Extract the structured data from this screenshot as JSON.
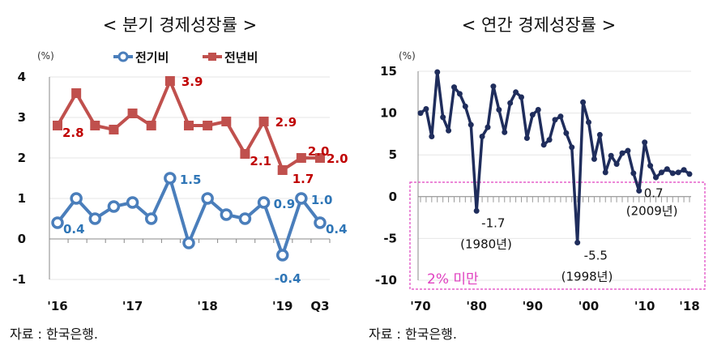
{
  "chart_data": [
    {
      "type": "line",
      "title": "< 분기 경제성장률 >",
      "unit_label": "(%)",
      "x": [
        "2016Q1",
        "2016Q2",
        "2016Q3",
        "2016Q4",
        "2017Q1",
        "2017Q2",
        "2017Q3",
        "2017Q4",
        "2018Q1",
        "2018Q2",
        "2018Q3",
        "2018Q4",
        "2019Q1",
        "2019Q2",
        "2019Q3"
      ],
      "x_tick_labels": [
        "'16",
        "'17",
        "'18",
        "'19",
        "Q3"
      ],
      "x_tick_index": [
        0,
        4,
        8,
        12,
        14
      ],
      "ylim": [
        -1,
        4
      ],
      "y_ticks": [
        4,
        3,
        2,
        1,
        0,
        -1
      ],
      "grid": true,
      "legend_placement": "top",
      "series": [
        {
          "name": "전기비",
          "color": "#4a7ebb",
          "label_color": "#2e75b6",
          "marker": "circle",
          "values": [
            0.4,
            1.0,
            0.5,
            0.8,
            0.9,
            0.5,
            1.5,
            -0.1,
            1.0,
            0.6,
            0.5,
            0.9,
            -0.4,
            1.0,
            0.4
          ],
          "labels": [
            {
              "i": 0,
              "text": "0.4"
            },
            {
              "i": 6,
              "text": "1.5"
            },
            {
              "i": 11,
              "text": "0.9"
            },
            {
              "i": 12,
              "text": "-0.4"
            },
            {
              "i": 13,
              "text": "1.0"
            },
            {
              "i": 14,
              "text": "0.4"
            }
          ]
        },
        {
          "name": "전년비",
          "color": "#c0504d",
          "label_color": "#c00000",
          "marker": "square",
          "values": [
            2.8,
            3.6,
            2.8,
            2.7,
            3.1,
            2.8,
            3.9,
            2.8,
            2.8,
            2.9,
            2.1,
            2.9,
            1.7,
            2.0,
            2.0
          ],
          "labels": [
            {
              "i": 0,
              "text": "2.8"
            },
            {
              "i": 6,
              "text": "3.9"
            },
            {
              "i": 10,
              "text": "2.1"
            },
            {
              "i": 11,
              "text": "2.9"
            },
            {
              "i": 12,
              "text": "1.7"
            },
            {
              "i": 13,
              "text": "2.0"
            },
            {
              "i": 14,
              "text": "2.0"
            }
          ]
        }
      ],
      "source": "자료 : 한국은행."
    },
    {
      "type": "line",
      "title": "< 연간 경제성장률 >",
      "unit_label": "(%)",
      "x_start": 1970,
      "x_tick_labels": [
        "'70",
        "'80",
        "'90",
        "'00",
        "'10",
        "'18"
      ],
      "x_tick_years": [
        1970,
        1980,
        1990,
        2000,
        2010,
        2018
      ],
      "ylim": [
        -10,
        15
      ],
      "y_ticks": [
        15,
        10,
        5,
        0,
        -5,
        -10
      ],
      "grid": true,
      "series": [
        {
          "color": "#1f2d5c",
          "values": [
            10.0,
            10.5,
            7.2,
            14.9,
            9.5,
            7.9,
            13.1,
            12.3,
            10.8,
            8.6,
            -1.7,
            7.2,
            8.3,
            13.2,
            10.4,
            7.7,
            11.2,
            12.5,
            11.9,
            7.0,
            9.8,
            10.4,
            6.2,
            6.8,
            9.2,
            9.6,
            7.6,
            5.9,
            -5.5,
            11.3,
            8.9,
            4.5,
            7.4,
            2.9,
            4.9,
            3.9,
            5.2,
            5.5,
            2.8,
            0.7,
            6.5,
            3.7,
            2.3,
            2.9,
            3.3,
            2.8,
            2.9,
            3.2,
            2.7
          ]
        }
      ],
      "annotations": [
        {
          "year": 1980,
          "value": "-1.7",
          "note": "(1980년)"
        },
        {
          "year": 1998,
          "value": "-5.5",
          "note": "(1998년)"
        },
        {
          "year": 2009,
          "value": "0.7",
          "note": "(2009년)"
        }
      ],
      "highlight_box": {
        "label": "2% 미만",
        "color": "#e040c0",
        "threshold": 2
      },
      "source": "자료 : 한국은행."
    }
  ]
}
